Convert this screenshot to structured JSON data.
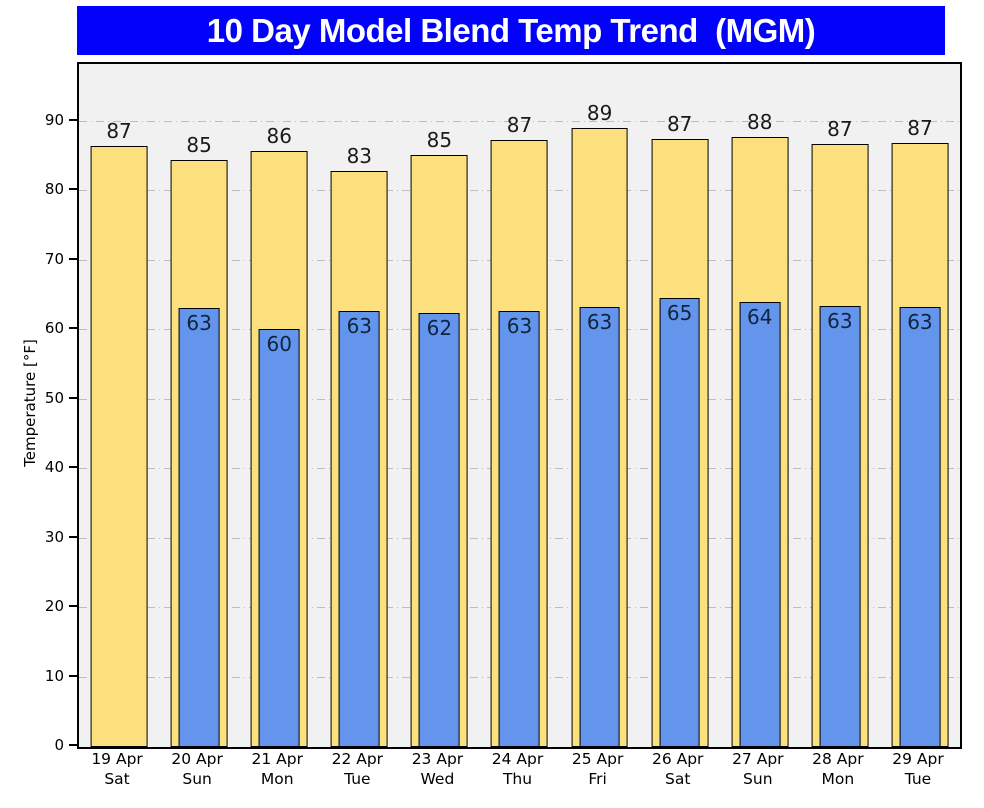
{
  "title": "10 Day Model Blend Temp Trend  (MGM)",
  "colors": {
    "banner_bg": "#0202FA",
    "banner_text": "#FFFFFF",
    "plot_bg": "#F1F1F1",
    "grid": "#BDBDBD",
    "bar_edge": "#000000",
    "high_bar": "#FCE07D",
    "low_bar": "#6495ED"
  },
  "chart_data": {
    "type": "bar",
    "title": "10 Day Model Blend Temp Trend  (MGM)",
    "xlabel": "",
    "ylabel": "Temperature [°F]",
    "ylim": [
      0,
      98.35
    ],
    "yticks": [
      0,
      10,
      20,
      30,
      40,
      50,
      60,
      70,
      80,
      90
    ],
    "grid": "horizontal dash-dot lines at yticks 10-90",
    "legend": "none",
    "categories": [
      {
        "date": "19 Apr",
        "dow": "Sat"
      },
      {
        "date": "20 Apr",
        "dow": "Sun"
      },
      {
        "date": "21 Apr",
        "dow": "Mon"
      },
      {
        "date": "22 Apr",
        "dow": "Tue"
      },
      {
        "date": "23 Apr",
        "dow": "Wed"
      },
      {
        "date": "24 Apr",
        "dow": "Thu"
      },
      {
        "date": "25 Apr",
        "dow": "Fri"
      },
      {
        "date": "26 Apr",
        "dow": "Sat"
      },
      {
        "date": "27 Apr",
        "dow": "Sun"
      },
      {
        "date": "28 Apr",
        "dow": "Mon"
      },
      {
        "date": "29 Apr",
        "dow": "Tue"
      }
    ],
    "series": [
      {
        "name": "High temperature (wide yellow bars, label above bar)",
        "color": "#FCE07D",
        "labels": [
          87,
          85,
          86,
          83,
          85,
          87,
          89,
          87,
          88,
          87,
          87
        ],
        "values": [
          86.6,
          84.6,
          85.8,
          82.9,
          85.3,
          87.4,
          89.2,
          87.5,
          87.9,
          86.8,
          87.0
        ]
      },
      {
        "name": "Low temperature (narrow blue bars, label inside bar top)",
        "color": "#6495ED",
        "labels": [
          null,
          63,
          60,
          63,
          62,
          63,
          63,
          65,
          64,
          63,
          63
        ],
        "values": [
          null,
          63.2,
          60.2,
          62.8,
          62.5,
          62.8,
          63.4,
          64.6,
          64.1,
          63.5,
          63.4
        ]
      }
    ]
  }
}
